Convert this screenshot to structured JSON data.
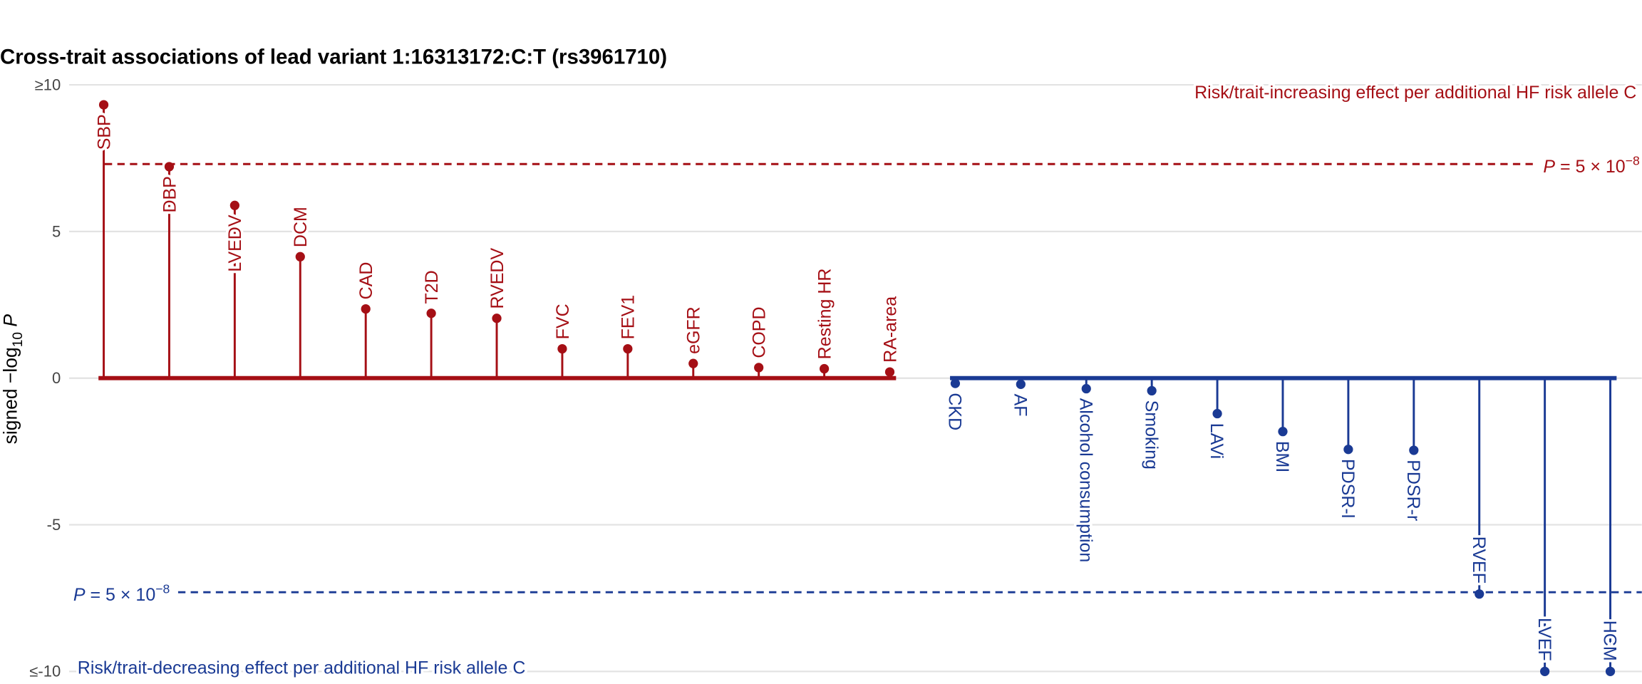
{
  "chart_data": {
    "type": "lollipop",
    "title": "Cross-trait associations of lead variant 1:16313172:C:T (rs3961710)",
    "ylabel": {
      "prefix": "signed  −log",
      "sub": "10",
      "var": "P"
    },
    "categories": [
      "SBP",
      "DBP",
      "LVEDV",
      "DCM",
      "CAD",
      "T2D",
      "RVEDV",
      "FVC",
      "FEV1",
      "eGFR",
      "COPD",
      "Resting HR",
      "RA-area",
      "CKD",
      "AF",
      "Alcohol consumption",
      "Smoking",
      "LAVi",
      "BMI",
      "PDSR-l",
      "PDSR-r",
      "RVEF",
      "LVEF",
      "HCM"
    ],
    "values": [
      9.32,
      7.21,
      5.89,
      4.14,
      2.36,
      2.21,
      2.04,
      1.0,
      1.0,
      0.5,
      0.36,
      0.32,
      0.21,
      -0.18,
      -0.21,
      -0.36,
      -0.43,
      -1.21,
      -1.82,
      -2.43,
      -2.46,
      -7.36,
      -10,
      -10
    ],
    "colors": {
      "positive": "#a50f15",
      "negative": "#1a3a94"
    },
    "ylim": [
      -10,
      10
    ],
    "yticks": [
      {
        "value": -10,
        "label": "≤-10"
      },
      -5,
      0,
      5,
      {
        "value": 10,
        "label": "≥10"
      }
    ],
    "grid": true,
    "threshold": {
      "value": 7.3,
      "var": "P",
      "text": " = 5 × 10",
      "exp": "−8"
    },
    "annotations": {
      "positive": "Risk/trait-increasing effect per additional HF risk allele C",
      "negative": "Risk/trait-decreasing effect per additional HF risk allele C"
    }
  }
}
